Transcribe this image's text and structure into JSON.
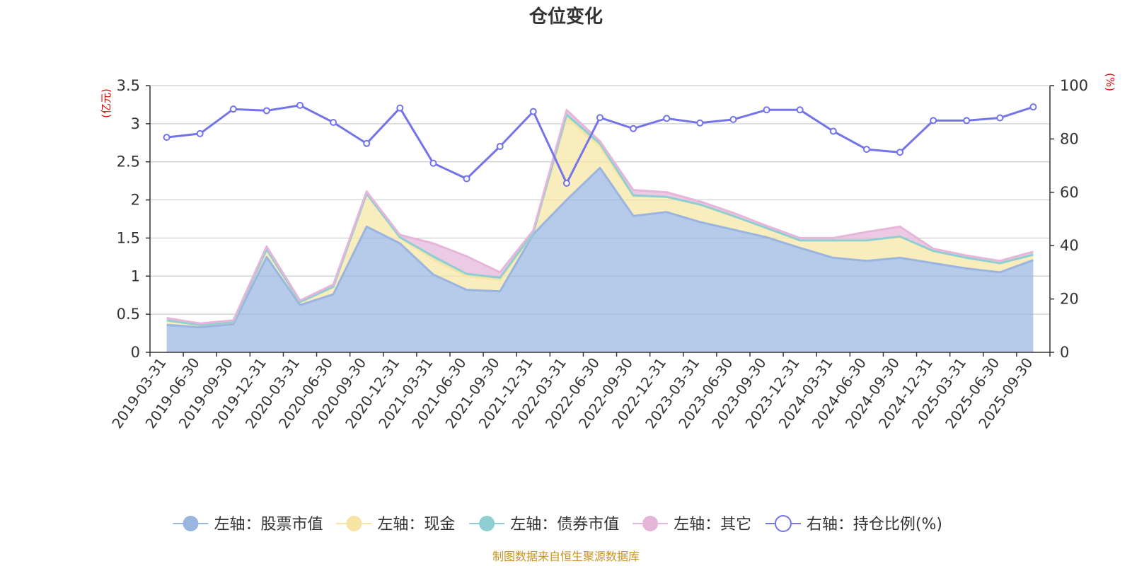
{
  "chart_data": {
    "type": "area",
    "title": "仓位变化",
    "left_axis_unit": "(亿元)",
    "right_axis_unit": "(%)",
    "left_ylim": [
      0,
      3.5
    ],
    "left_ticks": [
      "0",
      "0.5",
      "1",
      "1.5",
      "2",
      "2.5",
      "3",
      "3.5"
    ],
    "right_ylim": [
      0,
      100
    ],
    "right_ticks": [
      "0",
      "20",
      "40",
      "60",
      "80",
      "100"
    ],
    "categories": [
      "2019-03-31",
      "2019-06-30",
      "2019-09-30",
      "2019-12-31",
      "2020-03-31",
      "2020-06-30",
      "2020-09-30",
      "2020-12-31",
      "2021-03-31",
      "2021-06-30",
      "2021-09-30",
      "2021-12-31",
      "2022-03-31",
      "2022-06-30",
      "2022-09-30",
      "2022-12-31",
      "2023-03-31",
      "2023-06-30",
      "2023-09-30",
      "2023-12-31",
      "2024-03-31",
      "2024-06-30",
      "2024-09-30",
      "2024-12-31",
      "2025-03-31",
      "2025-06-30",
      "2025-09-30"
    ],
    "stacked_series": [
      {
        "name": "左轴：股票市值",
        "color": "#9ab5e0",
        "values": [
          0.36,
          0.33,
          0.37,
          1.25,
          0.62,
          0.76,
          1.65,
          1.43,
          1.02,
          0.82,
          0.8,
          1.55,
          2.0,
          2.42,
          1.79,
          1.84,
          1.71,
          1.61,
          1.51,
          1.37,
          1.24,
          1.2,
          1.24,
          1.17,
          1.1,
          1.05,
          1.21
        ]
      },
      {
        "name": "左轴：现金",
        "color": "#f6e4a3",
        "values": [
          0.06,
          0.03,
          0.03,
          0.1,
          0.04,
          0.1,
          0.43,
          0.08,
          0.2,
          0.18,
          0.15,
          0.02,
          1.08,
          0.28,
          0.26,
          0.2,
          0.23,
          0.18,
          0.12,
          0.1,
          0.23,
          0.27,
          0.28,
          0.16,
          0.14,
          0.12,
          0.07
        ]
      },
      {
        "name": "左轴：债券市值",
        "color": "#8ecfd2",
        "values": [
          0,
          0,
          0,
          0,
          0,
          0,
          0,
          0,
          0.04,
          0.03,
          0.03,
          0,
          0.04,
          0.04,
          0.01,
          0,
          0,
          0,
          0,
          0,
          0,
          0,
          0,
          0,
          0,
          0,
          0
        ]
      },
      {
        "name": "左轴：其它",
        "color": "#e6b6da",
        "values": [
          0.03,
          0.02,
          0.02,
          0.04,
          0.02,
          0.03,
          0.03,
          0.03,
          0.17,
          0.23,
          0.07,
          0.03,
          0.06,
          0.03,
          0.07,
          0.06,
          0.04,
          0.04,
          0.03,
          0.03,
          0.03,
          0.11,
          0.13,
          0.03,
          0.03,
          0.03,
          0.04
        ]
      }
    ],
    "line_series": {
      "name": "右轴：持仓比例(%)",
      "color": "#7373ea",
      "values": [
        80.6,
        82.0,
        91.2,
        90.6,
        92.6,
        86.2,
        78.3,
        91.6,
        70.9,
        65.1,
        77.2,
        90.3,
        63.4,
        88.0,
        83.9,
        87.7,
        86.0,
        87.3,
        90.9,
        90.9,
        82.9,
        76.1,
        75.0,
        86.9,
        86.9,
        87.9,
        92.0
      ]
    },
    "legend": [
      "左轴：股票市值",
      "左轴：现金",
      "左轴：债券市值",
      "左轴：其它",
      "右轴：持仓比例(%)"
    ],
    "legend_position": "bottom",
    "grid": true
  },
  "source_text": "制图数据来自恒生聚源数据库"
}
